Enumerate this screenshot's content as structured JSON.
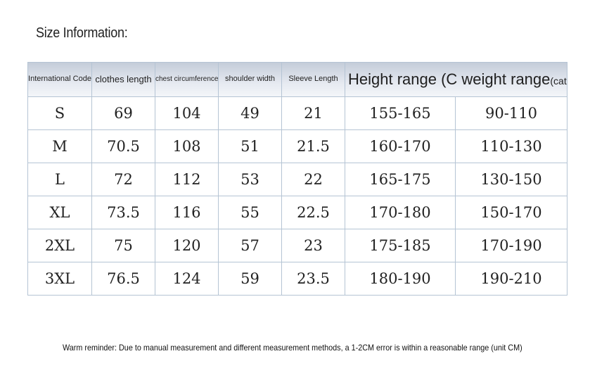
{
  "title": "Size Information:",
  "table": {
    "headers": {
      "international_code": "International Code",
      "clothes_length": "clothes length",
      "chest": "chest circumference",
      "shoulder": "shoulder width",
      "sleeve": "Sleeve Length",
      "height_weight": "Height range (C weight range",
      "catty": "(catty)"
    },
    "rows": [
      {
        "code": "S",
        "length": "69",
        "chest": "104",
        "shoulder": "49",
        "sleeve": "21",
        "height": "155-165",
        "weight": "90-110"
      },
      {
        "code": "M",
        "length": "70.5",
        "chest": "108",
        "shoulder": "51",
        "sleeve": "21.5",
        "height": "160-170",
        "weight": "110-130"
      },
      {
        "code": "L",
        "length": "72",
        "chest": "112",
        "shoulder": "53",
        "sleeve": "22",
        "height": "165-175",
        "weight": "130-150"
      },
      {
        "code": "XL",
        "length": "73.5",
        "chest": "116",
        "shoulder": "55",
        "sleeve": "22.5",
        "height": "170-180",
        "weight": "150-170"
      },
      {
        "code": "2XL",
        "length": "75",
        "chest": "120",
        "shoulder": "57",
        "sleeve": "23",
        "height": "175-185",
        "weight": "170-190"
      },
      {
        "code": "3XL",
        "length": "76.5",
        "chest": "124",
        "shoulder": "59",
        "sleeve": "23.5",
        "height": "180-190",
        "weight": "190-210"
      }
    ]
  },
  "reminder": "Warm reminder: Due to manual measurement and different measurement methods, a 1-2CM error is within a reasonable range (unit CM)"
}
